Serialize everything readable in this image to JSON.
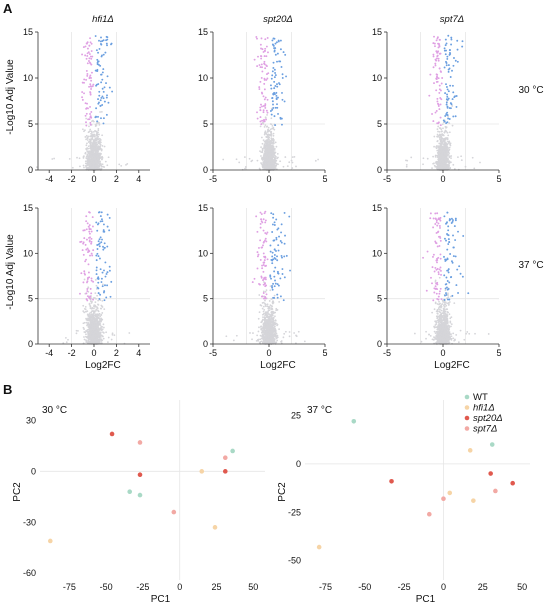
{
  "figure": {
    "panel_a_label": "A",
    "panel_b_label": "B",
    "colors": {
      "ns": "#d5d5d9",
      "down": "#dfa0e3",
      "up": "#6b9fe0",
      "axis": "#333333",
      "guide": "#e6e6e6"
    }
  },
  "chart_data": [
    {
      "type": "scatter",
      "subtype": "volcano",
      "title": "hfi1Δ",
      "condition": "",
      "xlabel": "",
      "ylabel": "-Log10 Adj Value",
      "xlim": [
        -5,
        5
      ],
      "ylim": [
        0,
        15
      ],
      "xticks": [
        "-4",
        "-2",
        "0",
        "2",
        "4"
      ],
      "xtick_values": [
        -4,
        -2,
        0,
        2,
        4
      ],
      "yticks": [
        "0",
        "5",
        "10",
        "15"
      ],
      "ytick_values": [
        0,
        5,
        10,
        15
      ],
      "threshold_lines": [
        -2,
        2
      ],
      "spread": 0.55,
      "seed": 11
    },
    {
      "type": "scatter",
      "subtype": "volcano",
      "title": "spt20Δ",
      "condition": "",
      "xlabel": "",
      "ylabel": "",
      "xlim": [
        -5,
        5
      ],
      "ylim": [
        0,
        15
      ],
      "xticks": [
        "-5",
        "0",
        "5"
      ],
      "xtick_values": [
        -5,
        0,
        5
      ],
      "yticks": [
        "0",
        "5",
        "10",
        "15"
      ],
      "ytick_values": [
        0,
        5,
        10,
        15
      ],
      "threshold_lines": [
        -2,
        2
      ],
      "spread": 0.5,
      "seed": 23
    },
    {
      "type": "scatter",
      "subtype": "volcano",
      "title": "spt7Δ",
      "condition": "30 °C",
      "xlabel": "",
      "ylabel": "",
      "xlim": [
        -5,
        5
      ],
      "ylim": [
        0,
        15
      ],
      "xticks": [
        "-5",
        "0",
        "5"
      ],
      "xtick_values": [
        -5,
        0,
        5
      ],
      "yticks": [
        "0",
        "5",
        "10",
        "15"
      ],
      "ytick_values": [
        0,
        5,
        10,
        15
      ],
      "threshold_lines": [
        -2,
        2
      ],
      "spread": 0.5,
      "seed": 37
    },
    {
      "type": "scatter",
      "subtype": "volcano",
      "title": "",
      "condition": "",
      "xlabel": "Log2FC",
      "ylabel": "-Log10 Adj Value",
      "xlim": [
        -5,
        5
      ],
      "ylim": [
        0,
        15
      ],
      "xticks": [
        "-4",
        "-2",
        "0",
        "2",
        "4"
      ],
      "xtick_values": [
        -4,
        -2,
        0,
        2,
        4
      ],
      "yticks": [
        "0",
        "5",
        "10",
        "15"
      ],
      "ytick_values": [
        0,
        5,
        10,
        15
      ],
      "threshold_lines": [
        -2,
        2
      ],
      "spread": 0.6,
      "seed": 41
    },
    {
      "type": "scatter",
      "subtype": "volcano",
      "title": "",
      "condition": "",
      "xlabel": "Log2FC",
      "ylabel": "",
      "xlim": [
        -5,
        5
      ],
      "ylim": [
        0,
        15
      ],
      "xticks": [
        "-5",
        "0",
        "5"
      ],
      "xtick_values": [
        -5,
        0,
        5
      ],
      "yticks": [
        "0",
        "5",
        "10",
        "15"
      ],
      "ytick_values": [
        0,
        5,
        10,
        15
      ],
      "threshold_lines": [
        -2,
        2
      ],
      "spread": 0.6,
      "seed": 53
    },
    {
      "type": "scatter",
      "subtype": "volcano",
      "title": "",
      "condition": "37 °C",
      "xlabel": "Log2FC",
      "ylabel": "",
      "xlim": [
        -5,
        5
      ],
      "ylim": [
        0,
        15
      ],
      "xticks": [
        "-5",
        "0",
        "5"
      ],
      "xtick_values": [
        -5,
        0,
        5
      ],
      "yticks": [
        "0",
        "5",
        "10",
        "15"
      ],
      "ytick_values": [
        0,
        5,
        10,
        15
      ],
      "threshold_lines": [
        -2,
        2
      ],
      "spread": 0.55,
      "seed": 67
    },
    {
      "type": "scatter",
      "subtype": "pca",
      "title": "30 °C",
      "xlabel": "PC1",
      "ylabel": "PC2",
      "xlim": [
        -95,
        58
      ],
      "ylim": [
        -64,
        42
      ],
      "xticks": [
        "-75",
        "-50",
        "-25",
        "0",
        "25",
        "50"
      ],
      "xtick_values": [
        -75,
        -50,
        -25,
        0,
        25,
        50
      ],
      "yticks": [
        "30",
        "0",
        "-30",
        "-60"
      ],
      "ytick_values": [
        30,
        0,
        -30,
        -60
      ],
      "legend": false,
      "points": [
        {
          "group": "WT",
          "x": 36,
          "y": 12
        },
        {
          "group": "WT",
          "x": -34,
          "y": -12
        },
        {
          "group": "WT",
          "x": -27,
          "y": -14
        },
        {
          "group": "hfi1Δ",
          "x": -88,
          "y": -41
        },
        {
          "group": "hfi1Δ",
          "x": 15,
          "y": 0
        },
        {
          "group": "hfi1Δ",
          "x": 24,
          "y": -33
        },
        {
          "group": "spt20Δ",
          "x": -46,
          "y": 22
        },
        {
          "group": "spt20Δ",
          "x": -27,
          "y": -2
        },
        {
          "group": "spt20Δ",
          "x": 31,
          "y": 0
        },
        {
          "group": "spt7Δ",
          "x": -27,
          "y": 17
        },
        {
          "group": "spt7Δ",
          "x": -4,
          "y": -24
        },
        {
          "group": "spt7Δ",
          "x": 31,
          "y": 8
        }
      ]
    },
    {
      "type": "scatter",
      "subtype": "pca",
      "title": "37 °C",
      "xlabel": "PC1",
      "ylabel": "PC2",
      "xlim": [
        -88,
        55
      ],
      "ylim": [
        -60,
        33
      ],
      "xticks": [
        "-75",
        "-50",
        "-25",
        "0",
        "25",
        "50"
      ],
      "xtick_values": [
        -75,
        -50,
        -25,
        0,
        25,
        50
      ],
      "yticks": [
        "25",
        "0",
        "-25",
        "-50"
      ],
      "ytick_values": [
        25,
        0,
        -25,
        -50
      ],
      "legend": true,
      "legend_position": "top-right",
      "points": [
        {
          "group": "WT",
          "x": -57,
          "y": 22
        },
        {
          "group": "WT",
          "x": 31,
          "y": 10
        },
        {
          "group": "hfi1Δ",
          "x": -79,
          "y": -43
        },
        {
          "group": "hfi1Δ",
          "x": 17,
          "y": 7
        },
        {
          "group": "hfi1Δ",
          "x": 4,
          "y": -15
        },
        {
          "group": "hfi1Δ",
          "x": 19,
          "y": -19
        },
        {
          "group": "spt20Δ",
          "x": -33,
          "y": -9
        },
        {
          "group": "spt20Δ",
          "x": 30,
          "y": -5
        },
        {
          "group": "spt20Δ",
          "x": 44,
          "y": -10
        },
        {
          "group": "spt7Δ",
          "x": -9,
          "y": -26
        },
        {
          "group": "spt7Δ",
          "x": 0,
          "y": -18
        },
        {
          "group": "spt7Δ",
          "x": 33,
          "y": -14
        }
      ]
    }
  ],
  "pca_legend": [
    {
      "label": "WT",
      "color": "#a9d9c6"
    },
    {
      "label": "hfi1Δ",
      "color": "#f6d4a6"
    },
    {
      "label": "spt20Δ",
      "color": "#e0594e"
    },
    {
      "label": "spt7Δ",
      "color": "#f2a9a4"
    }
  ]
}
